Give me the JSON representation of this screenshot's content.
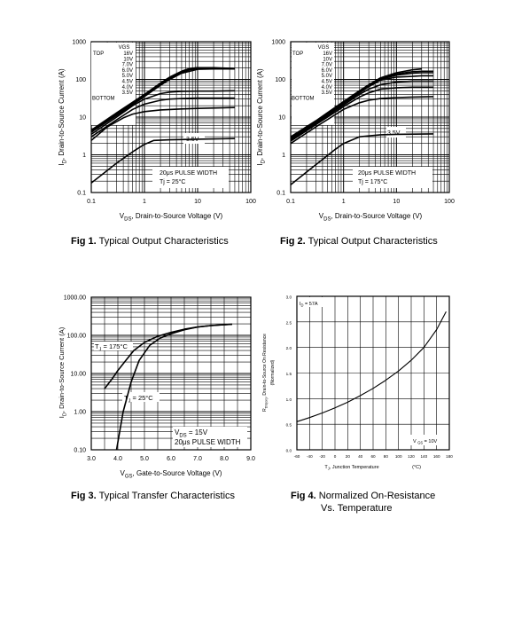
{
  "chart_data": [
    {
      "type": "line",
      "id": "fig1",
      "x_scale": "log",
      "y_scale": "log",
      "xlim": [
        0.1,
        100
      ],
      "ylim": [
        0.1,
        1000
      ],
      "x_ticks": [
        "0.1",
        "1",
        "10",
        "100"
      ],
      "y_ticks": [
        "1000",
        "100",
        "10",
        "1",
        "0.1"
      ],
      "ylabel_sym": "I",
      "ylabel_sub": "D",
      "ylabel_rest": ", Drain-to-Source Current (A)",
      "xlabel_sym": "V",
      "xlabel_sub": "DS",
      "xlabel_rest": ", Drain-to-Source Voltage (V)",
      "legend": {
        "header": "VGS",
        "top_label": "TOP",
        "bottom_label": "BOTTOM",
        "values": [
          "16V",
          "10V",
          "7.0V",
          "6.0V",
          "5.0V",
          "4.5V",
          "4.0V",
          "3.5V"
        ]
      },
      "curve_label": "3.5V",
      "annotations": [
        "20μs PULSE WIDTH",
        "Tj = 25°C"
      ],
      "series": [
        {
          "name": "16V",
          "x": [
            0.1,
            0.3,
            1,
            2,
            3,
            5,
            7,
            10,
            20,
            30,
            50
          ],
          "y": [
            4.5,
            13,
            40,
            80,
            115,
            165,
            195,
            205,
            205,
            200,
            195
          ]
        },
        {
          "name": "10V",
          "x": [
            0.1,
            0.3,
            1,
            2,
            3,
            5,
            7,
            10,
            20,
            30,
            50
          ],
          "y": [
            4.3,
            12,
            38,
            76,
            110,
            158,
            190,
            205,
            200,
            198,
            195
          ]
        },
        {
          "name": "7.0V",
          "x": [
            0.1,
            0.3,
            1,
            2,
            3,
            5,
            7,
            10,
            20,
            30,
            50
          ],
          "y": [
            4.1,
            11.5,
            36,
            72,
            105,
            150,
            180,
            195,
            198,
            195,
            192
          ]
        },
        {
          "name": "6.0V",
          "x": [
            0.1,
            0.3,
            1,
            2,
            3,
            5,
            10,
            20,
            30,
            50
          ],
          "y": [
            4.0,
            11,
            35,
            70,
            100,
            145,
            185,
            190,
            190,
            190
          ]
        },
        {
          "name": "5.0V",
          "x": [
            0.1,
            0.3,
            0.6,
            1,
            2,
            3,
            5,
            10,
            20,
            50
          ],
          "y": [
            3.5,
            10,
            20,
            30,
            42,
            46,
            48,
            49,
            49,
            50
          ]
        },
        {
          "name": "4.5V",
          "x": [
            0.1,
            0.3,
            0.6,
            1,
            2,
            3,
            5,
            10,
            20,
            50
          ],
          "y": [
            3.0,
            8.5,
            16,
            22,
            28,
            30,
            31,
            32,
            32,
            32
          ]
        },
        {
          "name": "4.0V",
          "x": [
            0.1,
            0.2,
            0.4,
            0.6,
            1,
            2,
            5,
            10,
            50
          ],
          "y": [
            2.4,
            5.5,
            9.5,
            12,
            14,
            15.5,
            16.5,
            17,
            18
          ]
        },
        {
          "name": "3.5V",
          "x": [
            0.1,
            0.3,
            0.6,
            1,
            1.5,
            3,
            10,
            50
          ],
          "y": [
            0.18,
            0.6,
            1.2,
            1.9,
            2.4,
            2.5,
            2.6,
            2.7
          ]
        }
      ]
    },
    {
      "type": "line",
      "id": "fig2",
      "x_scale": "log",
      "y_scale": "log",
      "xlim": [
        0.1,
        100
      ],
      "ylim": [
        0.1,
        1000
      ],
      "x_ticks": [
        "0.1",
        "1",
        "10",
        "100"
      ],
      "y_ticks": [
        "1000",
        "100",
        "10",
        "1",
        "0.1"
      ],
      "ylabel_sym": "I",
      "ylabel_sub": "D",
      "ylabel_rest": ", Drain-to-Source Current (A)",
      "xlabel_sym": "V",
      "xlabel_sub": "DS",
      "xlabel_rest": ", Drain-to-Source Voltage (V)",
      "legend": {
        "header": "VGS",
        "top_label": "TOP",
        "bottom_label": "BOTTOM",
        "values": [
          "16V",
          "10V",
          "7.0V",
          "6.0V",
          "5.0V",
          "4.5V",
          "4.0V",
          "3.5V"
        ]
      },
      "curve_label": "3.5V",
      "annotations": [
        "20μs PULSE WIDTH",
        "Tj = 175°C"
      ],
      "series": [
        {
          "name": "16V",
          "x": [
            0.1,
            0.3,
            1,
            2,
            3,
            5,
            10,
            20,
            30
          ],
          "y": [
            3.0,
            8,
            26,
            50,
            72,
            110,
            150,
            180,
            190
          ]
        },
        {
          "name": "10V",
          "x": [
            0.1,
            0.3,
            1,
            2,
            3,
            5,
            10,
            20,
            30,
            50
          ],
          "y": [
            2.9,
            7.7,
            25,
            48,
            70,
            105,
            140,
            160,
            165,
            165
          ]
        },
        {
          "name": "7.0V",
          "x": [
            0.1,
            0.3,
            1,
            2,
            3,
            5,
            10,
            20,
            30,
            50
          ],
          "y": [
            2.8,
            7.4,
            24,
            46,
            67,
            100,
            130,
            145,
            150,
            150
          ]
        },
        {
          "name": "6.0V",
          "x": [
            0.1,
            0.3,
            1,
            2,
            3,
            5,
            10,
            20,
            30,
            50
          ],
          "y": [
            2.7,
            7.2,
            23,
            44,
            64,
            95,
            115,
            120,
            125,
            125
          ]
        },
        {
          "name": "5.0V",
          "x": [
            0.1,
            0.3,
            1,
            2,
            3,
            5,
            10,
            20,
            30,
            50
          ],
          "y": [
            2.5,
            6.8,
            21,
            40,
            55,
            72,
            85,
            90,
            90,
            90
          ]
        },
        {
          "name": "4.5V",
          "x": [
            0.1,
            0.3,
            1,
            2,
            3,
            5,
            10,
            20,
            30,
            50
          ],
          "y": [
            2.3,
            6.3,
            19,
            34,
            44,
            55,
            60,
            62,
            62,
            62
          ]
        },
        {
          "name": "4.0V",
          "x": [
            0.1,
            0.3,
            1,
            2,
            3,
            5,
            10,
            20,
            50
          ],
          "y": [
            2.0,
            5.5,
            16,
            24,
            28,
            31,
            33,
            34,
            35
          ]
        },
        {
          "name": "3.5V",
          "x": [
            0.1,
            0.2,
            0.4,
            0.7,
            1,
            2,
            5,
            10,
            50
          ],
          "y": [
            0.16,
            0.35,
            0.75,
            1.4,
            2.0,
            3.0,
            3.4,
            3.5,
            3.6
          ]
        }
      ]
    },
    {
      "type": "line",
      "id": "fig3",
      "x_scale": "linear",
      "y_scale": "log",
      "xlim": [
        3.0,
        9.0
      ],
      "ylim": [
        0.1,
        1000
      ],
      "x_ticks": [
        "3.0",
        "4.0",
        "5.0",
        "6.0",
        "7.0",
        "8.0",
        "9.0"
      ],
      "y_ticks": [
        "1000.00",
        "100.00",
        "10.00",
        "1.00",
        "0.10"
      ],
      "ylabel_sym": "I",
      "ylabel_sub": "D",
      "ylabel_rest": ", Drain-to-Source Current (A)",
      "xlabel_sym": "V",
      "xlabel_sub": "GS",
      "xlabel_rest": ", Gate-to-Source Voltage (V)",
      "curve_labels": [
        {
          "pre": "T",
          "sub": "J",
          "post": " = 175°C"
        },
        {
          "pre": "T",
          "sub": "J",
          "post": " = 25°C"
        }
      ],
      "annotations": [
        {
          "pre": "V",
          "sub": "DS",
          "post": " = 15V"
        },
        {
          "pre": "20μs PULSE WIDTH",
          "sub": "",
          "post": ""
        }
      ],
      "series": [
        {
          "name": "TJ = 175°C",
          "x": [
            3.5,
            3.8,
            4.0,
            4.3,
            4.6,
            5.0,
            5.5,
            6.0,
            6.5,
            7.0,
            7.5,
            8.0,
            8.3
          ],
          "y": [
            4.0,
            7.5,
            12,
            22,
            40,
            65,
            95,
            120,
            145,
            165,
            180,
            190,
            195
          ]
        },
        {
          "name": "TJ = 25°C",
          "x": [
            3.95,
            4.2,
            4.5,
            4.8,
            5.2,
            5.6,
            6.0,
            6.5,
            7.0,
            7.5,
            8.0,
            8.3
          ],
          "y": [
            0.1,
            1.0,
            6.0,
            22,
            55,
            85,
            110,
            140,
            165,
            180,
            190,
            195
          ]
        }
      ]
    },
    {
      "type": "line",
      "id": "fig4",
      "x_scale": "linear",
      "y_scale": "linear",
      "xlim": [
        -60,
        180
      ],
      "ylim": [
        0.0,
        3.0
      ],
      "x_ticks": [
        "-60",
        "-40",
        "-20",
        "0",
        "20",
        "40",
        "60",
        "80",
        "100",
        "120",
        "140",
        "160",
        "180"
      ],
      "y_ticks": [
        "3.0",
        "2.5",
        "2.0",
        "1.5",
        "1.0",
        "0.5",
        "0.0"
      ],
      "ylabel_sym": "R",
      "ylabel_sub": "DS(on)",
      "ylabel_rest": ", Drain-to-Source On Resistance",
      "ylabel_line2": "(Normalized)",
      "xlabel_sym": "T",
      "xlabel_sub": "J",
      "xlabel_rest": ", Junction Temperature",
      "xunit": "(°C)",
      "annotations": [
        {
          "pre": "I",
          "sub": "D",
          "post": " = 57A"
        },
        {
          "pre": "V ",
          "sub": "GS",
          "post": " = 10V"
        }
      ],
      "series": [
        {
          "name": "RDS(on)",
          "x": [
            -60,
            -40,
            -20,
            0,
            20,
            40,
            60,
            80,
            100,
            120,
            140,
            160,
            175
          ],
          "y": [
            0.55,
            0.63,
            0.72,
            0.82,
            0.93,
            1.06,
            1.2,
            1.36,
            1.54,
            1.75,
            2.0,
            2.35,
            2.7
          ]
        }
      ]
    }
  ],
  "captions": [
    {
      "num": "Fig 1.",
      "text": "Typical Output Characteristics",
      "text2": ""
    },
    {
      "num": "Fig 2.",
      "text": "Typical Output Characteristics",
      "text2": ""
    },
    {
      "num": "Fig 3.",
      "text": "Typical Transfer Characteristics",
      "text2": ""
    },
    {
      "num": "Fig 4.",
      "text": "Normalized On-Resistance",
      "text2": "Vs. Temperature"
    }
  ]
}
